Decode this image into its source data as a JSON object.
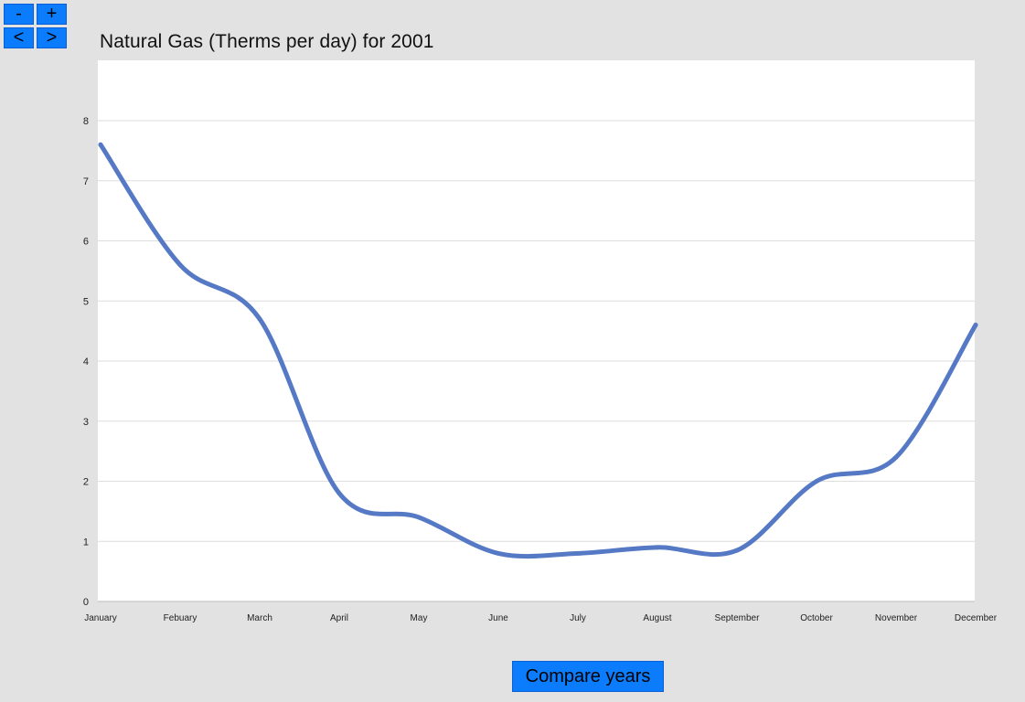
{
  "nav": {
    "zoom_out_label": "-",
    "zoom_in_label": "+",
    "prev_label": "<",
    "next_label": ">"
  },
  "chart_data": {
    "type": "line",
    "title": "Natural Gas (Therms per day) for 2001",
    "xlabel": "",
    "ylabel": "",
    "categories": [
      "January",
      "Febuary",
      "March",
      "April",
      "May",
      "June",
      "July",
      "August",
      "September",
      "October",
      "November",
      "December"
    ],
    "series": [
      {
        "values": [
          7.6,
          5.6,
          4.7,
          1.8,
          1.4,
          0.8,
          0.8,
          0.9,
          0.85,
          2.0,
          2.4,
          4.6
        ],
        "color": "#5579c4"
      }
    ],
    "ylim": [
      0,
      8
    ],
    "yticks": [
      0,
      1,
      2,
      3,
      4,
      5,
      6,
      7,
      8
    ],
    "grid": true,
    "legend": "none",
    "curve": "smooth"
  },
  "compare_label": "Compare years"
}
